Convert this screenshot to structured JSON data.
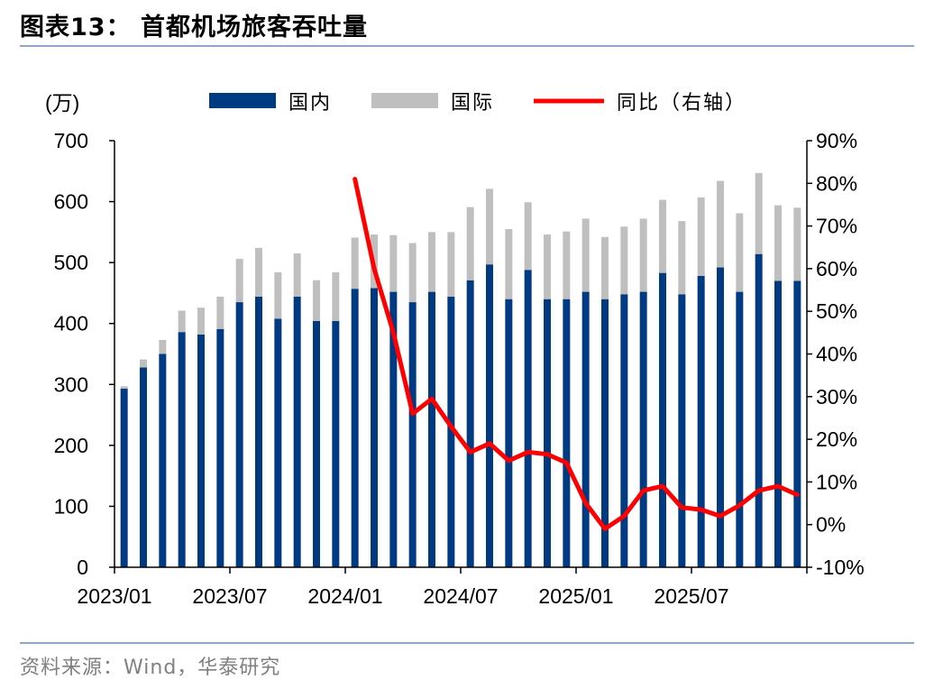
{
  "header": {
    "title": "图表13：  首都机场旅客吞吐量"
  },
  "footer": {
    "source": "资料来源：Wind，华泰研究"
  },
  "chart_data": {
    "type": "bar",
    "stacked": true,
    "ylabel_left": "(万)",
    "ylim_left": [
      0,
      700
    ],
    "yticks_left": [
      "0",
      "100",
      "200",
      "300",
      "400",
      "500",
      "600",
      "700"
    ],
    "ylim_right": [
      -10,
      90
    ],
    "yticks_right": [
      "-10%",
      "0%",
      "10%",
      "20%",
      "30%",
      "40%",
      "50%",
      "60%",
      "70%",
      "80%",
      "90%"
    ],
    "xtick_labels": [
      "2023/01",
      "2023/07",
      "2024/01",
      "2024/07",
      "2025/01",
      "2025/07"
    ],
    "xtick_index": [
      0,
      6,
      12,
      18,
      24,
      30
    ],
    "categories": [
      "2023/01",
      "2023/02",
      "2023/03",
      "2023/04",
      "2023/05",
      "2023/06",
      "2023/07",
      "2023/08",
      "2023/09",
      "2023/10",
      "2023/11",
      "2023/12",
      "2024/01",
      "2024/02",
      "2024/03",
      "2024/04",
      "2024/05",
      "2024/06",
      "2024/07",
      "2024/08",
      "2024/09",
      "2024/10",
      "2024/11",
      "2024/12",
      "2025/01",
      "2025/02",
      "2025/03",
      "2025/04",
      "2025/05",
      "2025/06",
      "2025/07",
      "2025/08",
      "2025/09",
      "2025/10",
      "2025/11",
      "2025/12"
    ],
    "legend": [
      "国内",
      "国际",
      "同比（右轴）"
    ],
    "legend_position": "top",
    "colors": {
      "domestic": "#003A80",
      "international": "#BFBFBF",
      "yoy": "#FF0000"
    },
    "series": [
      {
        "name": "国内",
        "axis": "left",
        "values": [
          293,
          328,
          350,
          386,
          382,
          391,
          435,
          444,
          408,
          444,
          404,
          404,
          457,
          458,
          452,
          435,
          452,
          444,
          471,
          497,
          440,
          488,
          440,
          440,
          452,
          440,
          448,
          452,
          483,
          448,
          478,
          492,
          452,
          514,
          470,
          470
        ]
      },
      {
        "name": "国际",
        "axis": "left",
        "values": [
          4,
          13,
          23,
          35,
          44,
          53,
          71,
          80,
          76,
          71,
          67,
          80,
          84,
          88,
          93,
          97,
          98,
          106,
          120,
          124,
          115,
          111,
          106,
          111,
          120,
          102,
          111,
          120,
          120,
          120,
          129,
          142,
          129,
          133,
          124,
          120
        ]
      },
      {
        "name": "同比（右轴）",
        "axis": "right",
        "type": "line",
        "values": [
          null,
          null,
          null,
          null,
          null,
          null,
          null,
          null,
          null,
          null,
          null,
          null,
          81,
          60,
          45,
          26,
          29.5,
          23,
          17,
          19,
          15,
          17,
          16.5,
          14.5,
          5,
          -1,
          2,
          8,
          9,
          4,
          3.5,
          2,
          4.5,
          8,
          9,
          7
        ]
      }
    ]
  }
}
